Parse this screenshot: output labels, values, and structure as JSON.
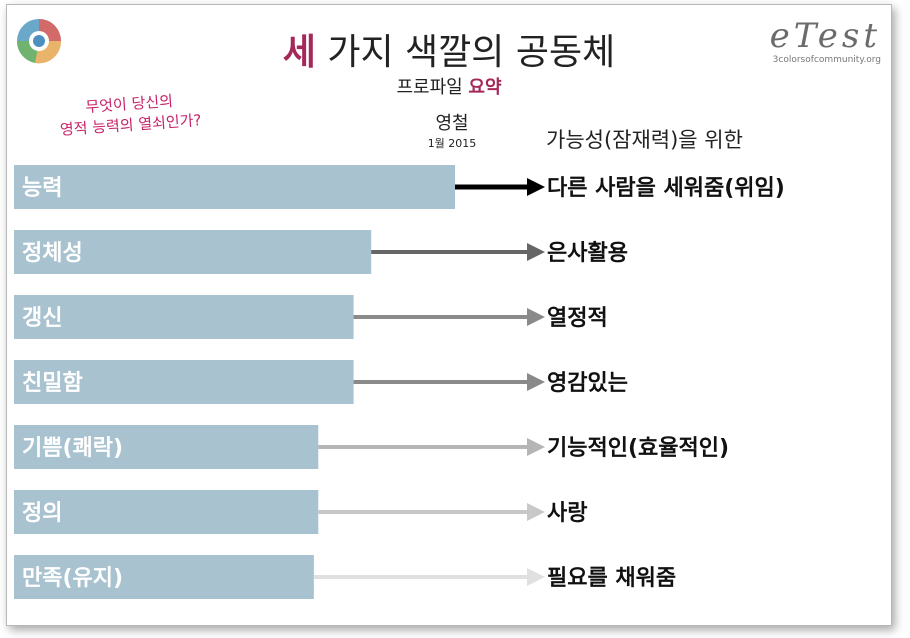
{
  "title": {
    "accent": "세",
    "rest": " 가지 색깔의 공동체"
  },
  "subtitle": {
    "main": "프로파일 ",
    "accent": "요약"
  },
  "person_name": "영철",
  "date": "1월 2015",
  "question": {
    "line1": "무엇이 당신의",
    "line2": "영적 능력의 열쇠인가?"
  },
  "column_header": "가능성(잠재력)을 위한",
  "brand": {
    "logo_text": "eTest",
    "url": "3colorsofcommunity.org"
  },
  "colors": {
    "accent": "#a5285a",
    "question": "#c8256a",
    "bar": "#a9c2cf"
  },
  "chart_data": {
    "type": "bar",
    "orientation": "horizontal",
    "categories": [
      "능력",
      "정체성",
      "갱신",
      "친밀함",
      "기쁨(쾌락)",
      "정의",
      "만족(유지)"
    ],
    "values": [
      100,
      81,
      77,
      77,
      69,
      69,
      68
    ],
    "targets": [
      "다른 사람을 세워줌(위임)",
      "은사활용",
      "열정적",
      "영감있는",
      "기능적인(효율적인)",
      "사랑",
      "필요를 채워줌"
    ],
    "arrow_colors": [
      "#000000",
      "#666666",
      "#8a8a8a",
      "#8a8a8a",
      "#b5b5b5",
      "#c8c8c8",
      "#e0e0e0"
    ],
    "xlim": [
      0,
      100
    ],
    "grid": false,
    "legend": "none"
  }
}
